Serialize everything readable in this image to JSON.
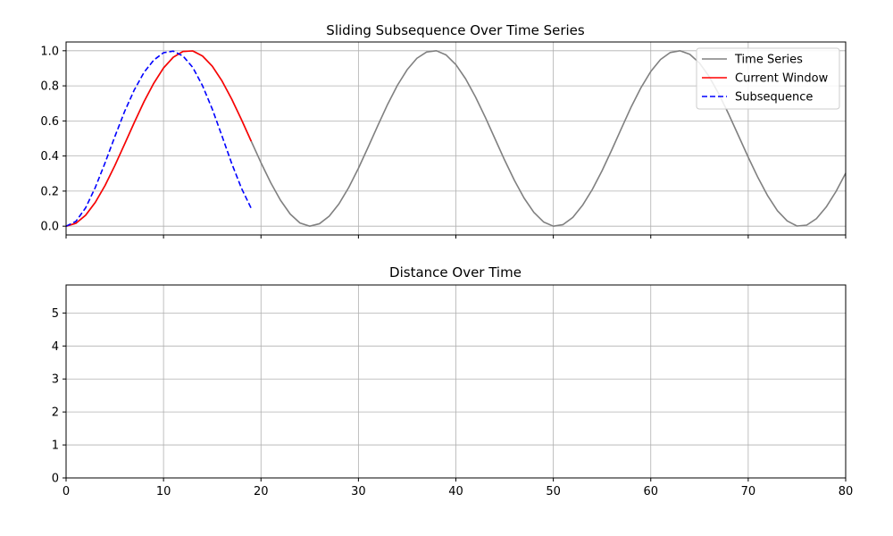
{
  "chart_data": [
    {
      "type": "line",
      "title": "Sliding Subsequence Over Time Series",
      "xlabel": "",
      "ylabel": "",
      "xlim": [
        0,
        80
      ],
      "ylim": [
        -0.05,
        1.05
      ],
      "x_ticks": [
        0,
        10,
        20,
        30,
        40,
        50,
        60,
        70,
        80
      ],
      "x_tick_labels_visible": false,
      "y_ticks": [
        0.0,
        0.2,
        0.4,
        0.6,
        0.8,
        1.0
      ],
      "y_tick_labels": [
        "0.0",
        "0.2",
        "0.4",
        "0.6",
        "0.8",
        "1.0"
      ],
      "grid": true,
      "legend": "top-right",
      "series": [
        {
          "name": "Time Series",
          "color": "#808080",
          "style": "solid",
          "x": [
            0,
            1,
            2,
            3,
            4,
            5,
            6,
            7,
            8,
            9,
            10,
            11,
            12,
            13,
            14,
            15,
            16,
            17,
            18,
            19,
            20,
            21,
            22,
            23,
            24,
            25,
            26,
            27,
            28,
            29,
            30,
            31,
            32,
            33,
            34,
            35,
            36,
            37,
            38,
            39,
            40,
            41,
            42,
            43,
            44,
            45,
            46,
            47,
            48,
            49,
            50,
            51,
            52,
            53,
            54,
            55,
            56,
            57,
            58,
            59,
            60,
            61,
            62,
            63,
            64,
            65,
            66,
            67,
            68,
            69,
            70,
            71,
            72,
            73,
            74,
            75,
            76,
            77,
            78,
            79,
            80
          ],
          "values": [
            0.0,
            0.016,
            0.062,
            0.136,
            0.232,
            0.345,
            0.467,
            0.591,
            0.71,
            0.815,
            0.902,
            0.963,
            0.996,
            0.999,
            0.97,
            0.912,
            0.828,
            0.724,
            0.607,
            0.484,
            0.362,
            0.248,
            0.148,
            0.069,
            0.018,
            0.0,
            0.014,
            0.057,
            0.127,
            0.22,
            0.33,
            0.451,
            0.575,
            0.695,
            0.803,
            0.892,
            0.957,
            0.993,
            1.0,
            0.976,
            0.921,
            0.84,
            0.738,
            0.623,
            0.5,
            0.377,
            0.262,
            0.16,
            0.079,
            0.024,
            0.0,
            0.009,
            0.05,
            0.119,
            0.209,
            0.316,
            0.435,
            0.559,
            0.681,
            0.79,
            0.882,
            0.95,
            0.99,
            1.0,
            0.98,
            0.93,
            0.852,
            0.752,
            0.638,
            0.516,
            0.393,
            0.277,
            0.173,
            0.088,
            0.03,
            0.001,
            0.006,
            0.043,
            0.109,
            0.197,
            0.302
          ]
        },
        {
          "name": "Current Window",
          "color": "#ff0000",
          "style": "solid",
          "x": [
            0,
            1,
            2,
            3,
            4,
            5,
            6,
            7,
            8,
            9,
            10,
            11,
            12,
            13,
            14,
            15,
            16,
            17,
            18,
            19
          ],
          "values": [
            0.0,
            0.016,
            0.062,
            0.136,
            0.232,
            0.345,
            0.467,
            0.591,
            0.71,
            0.815,
            0.902,
            0.963,
            0.996,
            0.999,
            0.97,
            0.912,
            0.828,
            0.724,
            0.607,
            0.484
          ]
        },
        {
          "name": "Subsequence",
          "color": "#0000ff",
          "style": "dashed",
          "x": [
            0,
            1,
            2,
            3,
            4,
            5,
            6,
            7,
            8,
            9,
            10,
            11,
            12,
            13,
            14,
            15,
            16,
            17,
            18,
            19
          ],
          "values": [
            0.0,
            0.027,
            0.104,
            0.221,
            0.361,
            0.51,
            0.653,
            0.777,
            0.877,
            0.947,
            0.989,
            0.998,
            0.97,
            0.905,
            0.801,
            0.668,
            0.514,
            0.357,
            0.216,
            0.101
          ]
        }
      ]
    },
    {
      "type": "line",
      "title": "Distance Over Time",
      "xlabel": "",
      "ylabel": "",
      "xlim": [
        0,
        80
      ],
      "ylim": [
        0,
        5.85
      ],
      "x_ticks": [
        0,
        10,
        20,
        30,
        40,
        50,
        60,
        70,
        80
      ],
      "x_tick_labels": [
        "0",
        "10",
        "20",
        "30",
        "40",
        "50",
        "60",
        "70",
        "80"
      ],
      "y_ticks": [
        0,
        1,
        2,
        3,
        4,
        5
      ],
      "y_tick_labels": [
        "0",
        "1",
        "2",
        "3",
        "4",
        "5"
      ],
      "grid": true,
      "series": []
    }
  ]
}
